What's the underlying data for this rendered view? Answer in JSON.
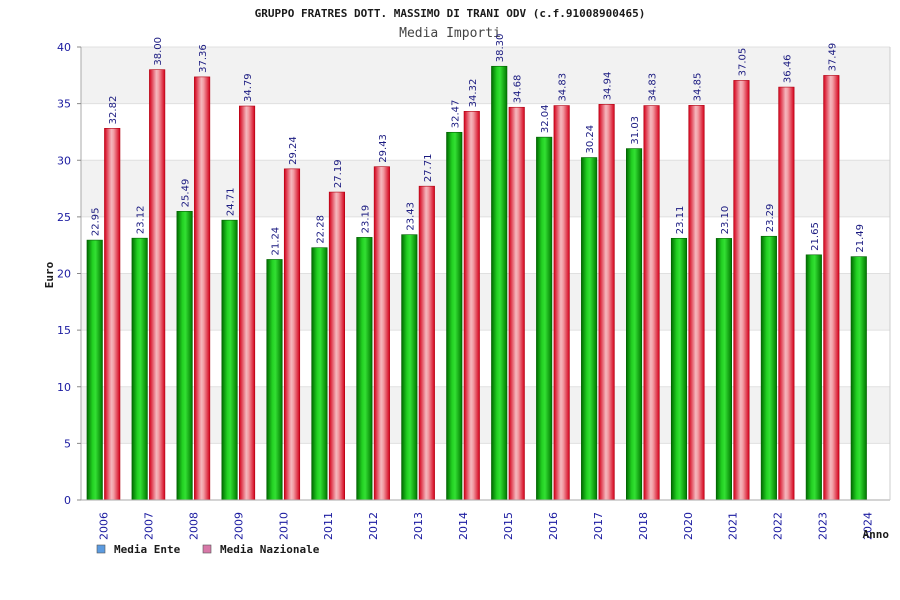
{
  "chart_data": {
    "type": "bar",
    "title": "GRUPPO FRATRES DOTT. MASSIMO DI TRANI ODV (c.f.91008900465)",
    "subtitle": "Media Importi",
    "xlabel": "Anno",
    "ylabel": "Euro",
    "ylim": [
      0,
      40
    ],
    "yticks": [
      0,
      5,
      10,
      15,
      20,
      25,
      30,
      35,
      40
    ],
    "ytick_labels": [
      "0",
      "5",
      "10",
      "15",
      "20",
      "25",
      "30",
      "35",
      "40"
    ],
    "grid": true,
    "legend_position": "bottom-left",
    "categories": [
      "2006",
      "2007",
      "2008",
      "2009",
      "2010",
      "2011",
      "2012",
      "2013",
      "2014",
      "2015",
      "2016",
      "2017",
      "2018",
      "2020",
      "2021",
      "2022",
      "2023",
      "2024"
    ],
    "series": [
      {
        "name": "Media Ente",
        "color": "#00a000",
        "legend_color": "#5b9be0",
        "values": [
          22.95,
          23.12,
          25.49,
          24.71,
          21.24,
          22.28,
          23.19,
          23.43,
          32.47,
          38.3,
          32.04,
          30.24,
          31.03,
          23.11,
          23.1,
          23.29,
          21.65,
          21.49
        ],
        "labels": [
          "22.95",
          "23.12",
          "25.49",
          "24.71",
          "21.24",
          "22.28",
          "23.19",
          "23.43",
          "32.47",
          "38.30",
          "32.04",
          "30.24",
          "31.03",
          "23.11",
          "23.10",
          "23.29",
          "21.65",
          "21.49"
        ]
      },
      {
        "name": "Media Nazionale",
        "color": "#e01020",
        "legend_color": "#d878a8",
        "values": [
          32.82,
          38.0,
          37.36,
          34.79,
          29.24,
          27.19,
          29.43,
          27.71,
          34.32,
          34.68,
          34.83,
          34.94,
          34.83,
          34.85,
          37.05,
          36.46,
          37.49,
          null
        ],
        "labels": [
          "32.82",
          "38.00",
          "37.36",
          "34.79",
          "29.24",
          "27.19",
          "29.43",
          "27.71",
          "34.32",
          "34.68",
          "34.83",
          "34.94",
          "34.83",
          "34.85",
          "37.05",
          "36.46",
          "37.49",
          ""
        ]
      }
    ]
  }
}
